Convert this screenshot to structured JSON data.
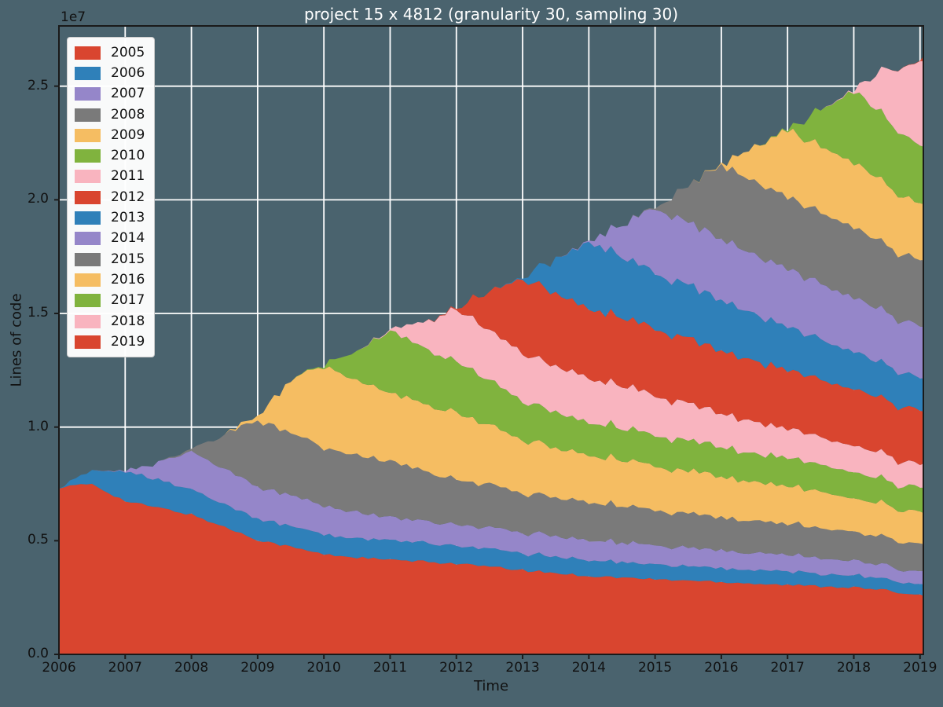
{
  "figure": {
    "background_color": "#4a636e",
    "grid_color": "#ffffff",
    "spine_color": "#1a1a1a",
    "tick_color": "#1a1a1a",
    "label_color": "#111111",
    "title_color": "#ffffff"
  },
  "chart_data": {
    "type": "area",
    "stacked": true,
    "title": "project 15 x 4812 (granularity 30, sampling 30)",
    "xlabel": "Time",
    "ylabel": "Lines of code",
    "offset_text": "1e7",
    "grid": true,
    "legend_position": "upper left",
    "unit_note": "series values in millions of lines (axis scale 1e7)",
    "xlim": [
      2006,
      2019.05
    ],
    "ylim_millions": [
      0,
      27.65
    ],
    "xticks": [
      2006,
      2007,
      2008,
      2009,
      2010,
      2011,
      2012,
      2013,
      2014,
      2015,
      2016,
      2017,
      2018,
      2019
    ],
    "yticks_millions": [
      0,
      5,
      10,
      15,
      20,
      25
    ],
    "ytick_labels": [
      "0.0",
      "0.5",
      "1.0",
      "1.5",
      "2.0",
      "2.5"
    ],
    "palette_cycle": [
      "#d9452f",
      "#2f80b9",
      "#9586c9",
      "#7a7a7a",
      "#f5bd62",
      "#80b33e",
      "#f9b4bf"
    ],
    "wiggle_amplitude_millions": 0.06,
    "x": [
      2006.0,
      2006.5,
      2007.0,
      2007.5,
      2008.0,
      2008.5,
      2009.0,
      2009.5,
      2010.0,
      2010.5,
      2011.0,
      2011.5,
      2012.0,
      2012.5,
      2013.0,
      2013.5,
      2014.0,
      2014.5,
      2015.0,
      2015.5,
      2016.0,
      2016.5,
      2017.0,
      2017.5,
      2018.0,
      2018.5,
      2019.0,
      2019.05
    ],
    "series": [
      {
        "name": "2005",
        "values": [
          7.35,
          7.5,
          6.74,
          6.45,
          6.15,
          5.6,
          5.05,
          4.73,
          4.4,
          4.27,
          4.15,
          4.08,
          4.0,
          3.85,
          3.7,
          3.58,
          3.45,
          3.38,
          3.3,
          3.25,
          3.2,
          3.12,
          3.05,
          3.0,
          2.95,
          2.8,
          2.62,
          2.62
        ]
      },
      {
        "name": "2006",
        "values": [
          0,
          0.55,
          1.31,
          1.22,
          1.12,
          1.03,
          0.95,
          0.91,
          0.88,
          0.86,
          0.85,
          0.81,
          0.78,
          0.76,
          0.74,
          0.72,
          0.7,
          0.68,
          0.66,
          0.64,
          0.62,
          0.6,
          0.58,
          0.56,
          0.54,
          0.51,
          0.48,
          0.48
        ]
      },
      {
        "name": "2007",
        "values": [
          0,
          0,
          0.03,
          0.75,
          1.68,
          1.55,
          1.42,
          1.35,
          1.28,
          1.14,
          1.0,
          0.97,
          0.95,
          0.93,
          0.92,
          0.91,
          0.9,
          0.87,
          0.85,
          0.81,
          0.78,
          0.75,
          0.72,
          0.68,
          0.64,
          0.6,
          0.55,
          0.55
        ]
      },
      {
        "name": "2008",
        "values": [
          0,
          0,
          0,
          0,
          0.1,
          1.5,
          2.95,
          2.75,
          2.55,
          2.5,
          2.45,
          2.22,
          2.0,
          1.87,
          1.75,
          1.7,
          1.65,
          1.6,
          1.55,
          1.5,
          1.45,
          1.41,
          1.38,
          1.33,
          1.28,
          1.23,
          1.18,
          1.18
        ]
      },
      {
        "name": "2009",
        "values": [
          0,
          0,
          0,
          0,
          0,
          0,
          0.2,
          2.3,
          3.6,
          3.3,
          3.0,
          2.97,
          2.95,
          2.62,
          2.3,
          2.2,
          2.1,
          2.02,
          1.95,
          1.87,
          1.8,
          1.72,
          1.65,
          1.57,
          1.5,
          1.44,
          1.38,
          1.38
        ]
      },
      {
        "name": "2010",
        "values": [
          0,
          0,
          0,
          0,
          0,
          0,
          0,
          0,
          0.05,
          1.3,
          2.7,
          2.47,
          2.25,
          1.97,
          1.7,
          1.57,
          1.45,
          1.41,
          1.38,
          1.34,
          1.3,
          1.26,
          1.22,
          1.17,
          1.12,
          1.08,
          1.04,
          1.04
        ]
      },
      {
        "name": "2011",
        "values": [
          0,
          0,
          0,
          0,
          0,
          0,
          0,
          0,
          0,
          0,
          0.05,
          1.1,
          2.3,
          2.2,
          2.1,
          2.02,
          1.95,
          1.85,
          1.75,
          1.62,
          1.5,
          1.4,
          1.3,
          1.22,
          1.15,
          1.09,
          1.04,
          1.04
        ]
      },
      {
        "name": "2012",
        "values": [
          0,
          0,
          0,
          0,
          0,
          0,
          0,
          0,
          0,
          0,
          0,
          0,
          0.05,
          1.7,
          3.3,
          3.17,
          3.05,
          3.0,
          2.95,
          2.85,
          2.75,
          2.67,
          2.6,
          2.54,
          2.48,
          2.41,
          2.35,
          2.35
        ]
      },
      {
        "name": "2013",
        "values": [
          0,
          0,
          0,
          0,
          0,
          0,
          0,
          0,
          0,
          0,
          0,
          0,
          0,
          0,
          0.05,
          1.5,
          2.95,
          2.7,
          2.45,
          2.35,
          2.25,
          2.07,
          1.9,
          1.77,
          1.65,
          1.55,
          1.45,
          1.45
        ]
      },
      {
        "name": "2014",
        "values": [
          0,
          0,
          0,
          0,
          0,
          0,
          0,
          0,
          0,
          0,
          0,
          0,
          0,
          0,
          0,
          0,
          0.05,
          1.4,
          2.85,
          2.77,
          2.7,
          2.62,
          2.55,
          2.47,
          2.4,
          2.32,
          2.25,
          2.25
        ]
      },
      {
        "name": "2015",
        "values": [
          0,
          0,
          0,
          0,
          0,
          0,
          0,
          0,
          0,
          0,
          0,
          0,
          0,
          0,
          0,
          0,
          0,
          0,
          0.05,
          1.6,
          3.25,
          3.2,
          3.15,
          3.12,
          3.1,
          3.0,
          2.87,
          2.87
        ]
      },
      {
        "name": "2016",
        "values": [
          0,
          0,
          0,
          0,
          0,
          0,
          0,
          0,
          0,
          0,
          0,
          0,
          0,
          0,
          0,
          0,
          0,
          0,
          0,
          0,
          0.05,
          1.5,
          2.95,
          2.9,
          2.85,
          2.67,
          2.49,
          2.49
        ]
      },
      {
        "name": "2017",
        "values": [
          0,
          0,
          0,
          0,
          0,
          0,
          0,
          0,
          0,
          0,
          0,
          0,
          0,
          0,
          0,
          0,
          0,
          0,
          0,
          0,
          0,
          0,
          0.05,
          1.6,
          3.2,
          2.9,
          2.53,
          2.53
        ]
      },
      {
        "name": "2018",
        "values": [
          0,
          0,
          0,
          0,
          0,
          0,
          0,
          0,
          0,
          0,
          0,
          0,
          0,
          0,
          0,
          0,
          0,
          0,
          0,
          0,
          0,
          0,
          0,
          0,
          0.05,
          2.2,
          3.7,
          3.8
        ]
      },
      {
        "name": "2019",
        "values": [
          0,
          0,
          0,
          0,
          0,
          0,
          0,
          0,
          0,
          0,
          0,
          0,
          0,
          0,
          0,
          0,
          0,
          0,
          0,
          0,
          0,
          0,
          0,
          0,
          0,
          0,
          0.02,
          0.17
        ]
      }
    ],
    "legend_labels": [
      "2005",
      "2006",
      "2007",
      "2008",
      "2009",
      "2010",
      "2011",
      "2012",
      "2013",
      "2014",
      "2015",
      "2016",
      "2017",
      "2018",
      "2019"
    ]
  }
}
